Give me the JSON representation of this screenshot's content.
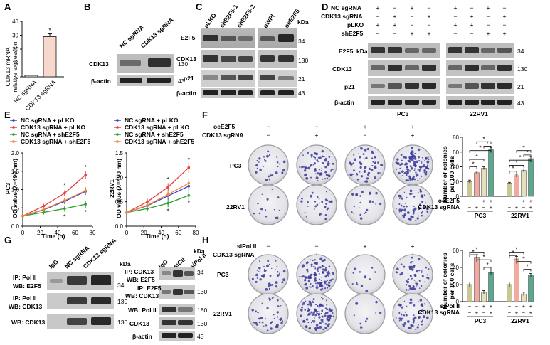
{
  "panels": {
    "A": "A",
    "B": "B",
    "C": "C",
    "D": "D",
    "E": "E",
    "F": "F",
    "G": "G",
    "H": "H"
  },
  "colors": {
    "blue": "#3a3ad0",
    "red": "#e83c3c",
    "green": "#2aa02a",
    "orange": "#f08a3a",
    "bar_light": "#f7d8cc",
    "bar_olive": "#c8c893",
    "bar_pink": "#f2a9a0",
    "bar_beige": "#e6e0b8",
    "bar_teal": "#5aa88e",
    "colony": "#3b3b9a"
  },
  "panelA": {
    "ylabel1": "CDK13 mRNA",
    "ylabel2": "relative expression",
    "cats": [
      "NC sgRNA",
      "CDK13 sgRNA"
    ],
    "star": "*"
  },
  "panelB": {
    "lanes": [
      "NC sgRNA",
      "CDK13 sgRNA"
    ],
    "rows": [
      "CDK13",
      "β-actin"
    ],
    "mw": [
      "130",
      "43"
    ]
  },
  "panelC": {
    "lanes": [
      "pLKO",
      "shE2F5-1",
      "shE2F5-2",
      "pWPI",
      "oeE2F5"
    ],
    "kda": "kDa",
    "rows": [
      "E2F5",
      "CDK13",
      "p21",
      "β-actin"
    ],
    "mw": [
      "34",
      "130",
      "21",
      "43"
    ]
  },
  "panelD": {
    "conds": [
      "NC sgRNA",
      "CDK13 sgRNA",
      "pLKO",
      "shE2F5"
    ],
    "signs": [
      [
        "+",
        "−",
        "+",
        "−",
        "+",
        "−",
        "+",
        "−"
      ],
      [
        "−",
        "+",
        "−",
        "+",
        "−",
        "+",
        "−",
        "+"
      ],
      [
        "+",
        "+",
        "−",
        "−",
        "+",
        "+",
        "−",
        "−"
      ],
      [
        "−",
        "−",
        "+",
        "+",
        "−",
        "−",
        "+",
        "+"
      ]
    ],
    "kda": "kDa",
    "rows": [
      "E2F5",
      "CDK13",
      "p21",
      "β-actin"
    ],
    "mw": [
      "34",
      "130",
      "21",
      "43"
    ],
    "cells": [
      "PC3",
      "22RV1"
    ]
  },
  "panelE": {
    "legend": [
      "NC sgRNA + pLKO",
      "CDK13 sgRNA + pLKO",
      "NC sgRNA + shE2F5",
      "CDK13 sgRNA + shE2F5"
    ],
    "ylabel": "OD value (λ=490 nm)",
    "xlabel": "Time (h)",
    "star": "*",
    "charts": [
      {
        "cell": "PC3"
      },
      {
        "cell": "22RV1"
      }
    ]
  },
  "panelF": {
    "conds": [
      "oeE2F5",
      "CDK13 sgRNA"
    ],
    "signs": [
      [
        "−",
        "−",
        "+",
        "+"
      ],
      [
        "−",
        "+",
        "−",
        "+"
      ]
    ],
    "cells": [
      "PC3",
      "22RV1"
    ],
    "ylabel1": "Number of colonies",
    "ylabel2": "per 100 cells",
    "xrow_labels": [
      "oeE2F5",
      "CDK13 sgRNA"
    ],
    "xrow_signs": [
      [
        "−",
        "−",
        "+",
        "+",
        "−",
        "−",
        "+",
        "+"
      ],
      [
        "−",
        "+",
        "−",
        "+",
        "−",
        "+",
        "−",
        "+"
      ]
    ],
    "groups": [
      "PC3",
      "22RV1"
    ],
    "star": "*"
  },
  "panelG": {
    "lanes": [
      "IgG",
      "NC sgRNA",
      "CDK13 sgRNA"
    ],
    "kda": "kDa",
    "rows": [
      "IP: Pol II",
      "WB: E2F5",
      "IP: Pol II",
      "WB: CDK13",
      "WB: CDK13"
    ],
    "mw": [
      "34",
      "130",
      "130"
    ],
    "lanes2": [
      "IgG",
      "siCtl",
      "siPol II"
    ],
    "rows2": [
      "IP: CDK13",
      "WB: E2F5",
      "IP: E2F5",
      "WB: CDK13",
      "WB: Pol II",
      "CDK13",
      "β-actin"
    ],
    "mw2": [
      "34",
      "130",
      "180",
      "130",
      "43"
    ]
  },
  "panelH": {
    "conds": [
      "siPol II",
      "CDK13 sgRNA"
    ],
    "signs": [
      [
        "−",
        "−",
        "+",
        "+"
      ],
      [
        "−",
        "+",
        "−",
        "+"
      ]
    ],
    "cells": [
      "PC3",
      "22RV1"
    ],
    "ylabel1": "Number of colonies",
    "ylabel2": "per 100 cells",
    "xrow_labels": [
      "siPol II",
      "CDK13 sgRNA"
    ],
    "xrow_signs": [
      [
        "−",
        "−",
        "+",
        "+",
        "−",
        "−",
        "+",
        "+"
      ],
      [
        "−",
        "+",
        "−",
        "+",
        "−",
        "+",
        "−",
        "+"
      ]
    ],
    "groups": [
      "PC3",
      "22RV1"
    ],
    "star": "*"
  },
  "chart_data": [
    {
      "type": "bar",
      "categories": [
        "NC sgRNA",
        "CDK13 sgRNA"
      ],
      "values": [
        1,
        29
      ],
      "errors": [
        0,
        2
      ],
      "ylabel": "CDK13 mRNA relative expression",
      "yticks": [
        0,
        10,
        20,
        30,
        40
      ],
      "ylim": [
        0,
        40
      ]
    },
    {
      "type": "line",
      "x": [
        0,
        24,
        48,
        72
      ],
      "xlabel": "Time (h)",
      "ylabel": "OD value (λ=490 nm)",
      "xticks": [
        0,
        20,
        40,
        60,
        80
      ],
      "yticks": [
        0.0,
        0.5,
        1.0,
        1.5,
        2.0
      ],
      "ylim": [
        0,
        2.0
      ],
      "series": [
        {
          "name": "NC sgRNA + pLKO",
          "values": [
            0.28,
            0.45,
            0.68,
            0.95
          ]
        },
        {
          "name": "CDK13 sgRNA + pLKO",
          "values": [
            0.28,
            0.55,
            0.9,
            1.4
          ]
        },
        {
          "name": "NC sgRNA + shE2F5",
          "values": [
            0.28,
            0.38,
            0.48,
            0.6
          ]
        },
        {
          "name": "CDK13 sgRNA + shE2F5",
          "values": [
            0.28,
            0.46,
            0.7,
            0.97
          ]
        }
      ]
    },
    {
      "type": "line",
      "x": [
        0,
        24,
        48,
        72
      ],
      "xlabel": "Time (h)",
      "ylabel": "OD value (λ=490 nm)",
      "xticks": [
        0,
        20,
        40,
        60,
        80
      ],
      "yticks": [
        0.0,
        0.5,
        1.0,
        1.5
      ],
      "ylim": [
        0,
        1.5
      ],
      "series": [
        {
          "name": "NC sgRNA + pLKO",
          "values": [
            0.28,
            0.42,
            0.62,
            0.82
          ]
        },
        {
          "name": "CDK13 sgRNA + pLKO",
          "values": [
            0.28,
            0.5,
            0.8,
            1.2
          ]
        },
        {
          "name": "NC sgRNA + shE2F5",
          "values": [
            0.28,
            0.36,
            0.47,
            0.63
          ]
        },
        {
          "name": "CDK13 sgRNA + shE2F5",
          "values": [
            0.28,
            0.43,
            0.65,
            0.88
          ]
        }
      ]
    },
    {
      "type": "bar",
      "ylabel": "Number of colonies per 100 cells",
      "yticks": [
        0,
        20,
        40,
        60,
        80
      ],
      "ylim": [
        0,
        80
      ],
      "groups": [
        "PC3",
        "22RV1"
      ],
      "values": [
        [
          20,
          32,
          38,
          63
        ],
        [
          18,
          28,
          35,
          51
        ]
      ],
      "errors": [
        [
          2,
          2,
          2,
          3
        ],
        [
          1,
          2,
          2,
          3
        ]
      ]
    },
    {
      "type": "bar",
      "ylabel": "Number of colonies per 100 cells",
      "yticks": [
        0,
        20,
        40,
        60
      ],
      "ylim": [
        0,
        60
      ],
      "groups": [
        "PC3",
        "22RV1"
      ],
      "values": [
        [
          20,
          52,
          11,
          34
        ],
        [
          20,
          50,
          9,
          31
        ]
      ],
      "errors": [
        [
          3,
          3,
          2,
          3
        ],
        [
          3,
          3,
          2,
          2
        ]
      ]
    }
  ]
}
